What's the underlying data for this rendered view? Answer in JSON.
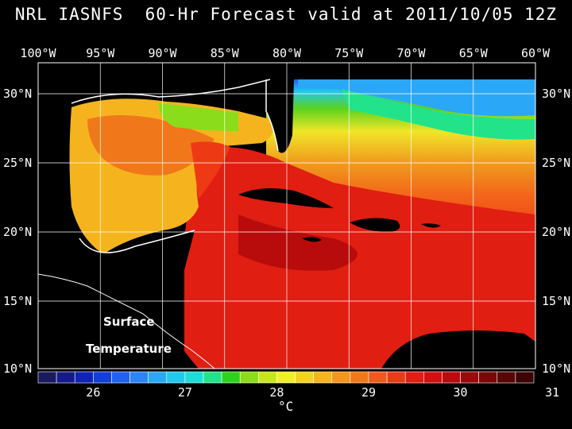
{
  "title": "NRL IASNFS  60-Hr Forecast valid at 2011/10/05 12Z",
  "lon_labels": [
    "100°W",
    "95°W",
    "90°W",
    "85°W",
    "80°W",
    "75°W",
    "70°W",
    "65°W",
    "60°W"
  ],
  "lat_labels": [
    "30°N",
    "25°N",
    "20°N",
    "15°N",
    "10°N"
  ],
  "overlay": {
    "line1": "Surface",
    "line2": "Temperature"
  },
  "colorbar": {
    "ticks": [
      "26",
      "27",
      "28",
      "29",
      "30",
      "31"
    ],
    "unit": "°C",
    "colors": [
      "#1a1a5e",
      "#151a8a",
      "#0f23b4",
      "#1040d8",
      "#1f62f0",
      "#2a86f5",
      "#2aa8f7",
      "#22c8f0",
      "#20dcd6",
      "#22e38a",
      "#2ed21e",
      "#8bdc1a",
      "#c8e61e",
      "#f0f028",
      "#f5d21e",
      "#f5b41e",
      "#f2961e",
      "#f0781a",
      "#ee5a18",
      "#e83c14",
      "#e01e12",
      "#d21010",
      "#b80c0c",
      "#9a0a0a",
      "#7a0808",
      "#5a0606",
      "#3c0404"
    ]
  },
  "legend_colors": {
    "land": "#000000",
    "coast": "#ffffff",
    "grid": "#ffffff"
  }
}
